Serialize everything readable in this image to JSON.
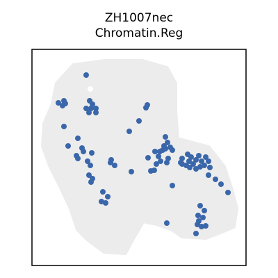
{
  "chart_data": {
    "type": "scatter",
    "title_line1": "ZH1007nec",
    "title_line2": "Chromatin.Reg",
    "xlabel": "",
    "ylabel": "",
    "axes_ticks": false,
    "grid": false,
    "background_color": "#ececec",
    "series": [
      {
        "color": "#3a66aa",
        "points": [
          [
            124,
            108
          ],
          [
            84,
            148
          ],
          [
            92,
            145
          ],
          [
            90,
            152
          ],
          [
            94,
            149
          ],
          [
            129,
            145
          ],
          [
            133,
            150
          ],
          [
            124,
            156
          ],
          [
            131,
            156
          ],
          [
            138,
            156
          ],
          [
            128,
            162
          ],
          [
            138,
            162
          ],
          [
            212,
            151
          ],
          [
            210,
            155
          ],
          [
            92,
            182
          ],
          [
            186,
            189
          ],
          [
            200,
            174
          ],
          [
            112,
            199
          ],
          [
            98,
            210
          ],
          [
            118,
            213
          ],
          [
            120,
            218
          ],
          [
            110,
            224
          ],
          [
            112,
            228
          ],
          [
            132,
            220
          ],
          [
            126,
            232
          ],
          [
            130,
            238
          ],
          [
            160,
            230
          ],
          [
            165,
            238
          ],
          [
            159,
            234
          ],
          [
            189,
            247
          ],
          [
            128,
            252
          ],
          [
            133,
            257
          ],
          [
            131,
            262
          ],
          [
            148,
            276
          ],
          [
            155,
            283
          ],
          [
            146,
            290
          ],
          [
            152,
            292
          ],
          [
            238,
            197
          ],
          [
            241,
            205
          ],
          [
            236,
            210
          ],
          [
            234,
            216
          ],
          [
            230,
            218
          ],
          [
            238,
            214
          ],
          [
            245,
            212
          ],
          [
            248,
            216
          ],
          [
            223,
            218
          ],
          [
            228,
            225
          ],
          [
            231,
            232
          ],
          [
            225,
            236
          ],
          [
            242,
            228
          ],
          [
            240,
            234
          ],
          [
            213,
            227
          ],
          [
            217,
            246
          ],
          [
            222,
            245
          ],
          [
            262,
            228
          ],
          [
            270,
            222
          ],
          [
            275,
            226
          ],
          [
            272,
            232
          ],
          [
            268,
            238
          ],
          [
            278,
            236
          ],
          [
            282,
            230
          ],
          [
            286,
            224
          ],
          [
            290,
            232
          ],
          [
            296,
            226
          ],
          [
            294,
            238
          ],
          [
            300,
            232
          ],
          [
            288,
            240
          ],
          [
            282,
            243
          ],
          [
            273,
            241
          ],
          [
            262,
            236
          ],
          [
            260,
            234
          ],
          [
            300,
            252
          ],
          [
            310,
            258
          ],
          [
            318,
            265
          ],
          [
            328,
            277
          ],
          [
            302,
            241
          ],
          [
            248,
            267
          ],
          [
            288,
            296
          ],
          [
            294,
            303
          ],
          [
            285,
            310
          ],
          [
            292,
            313
          ],
          [
            286,
            318
          ],
          [
            284,
            323
          ],
          [
            290,
            326
          ],
          [
            296,
            325
          ],
          [
            282,
            336
          ],
          [
            240,
            321
          ]
        ]
      }
    ]
  }
}
